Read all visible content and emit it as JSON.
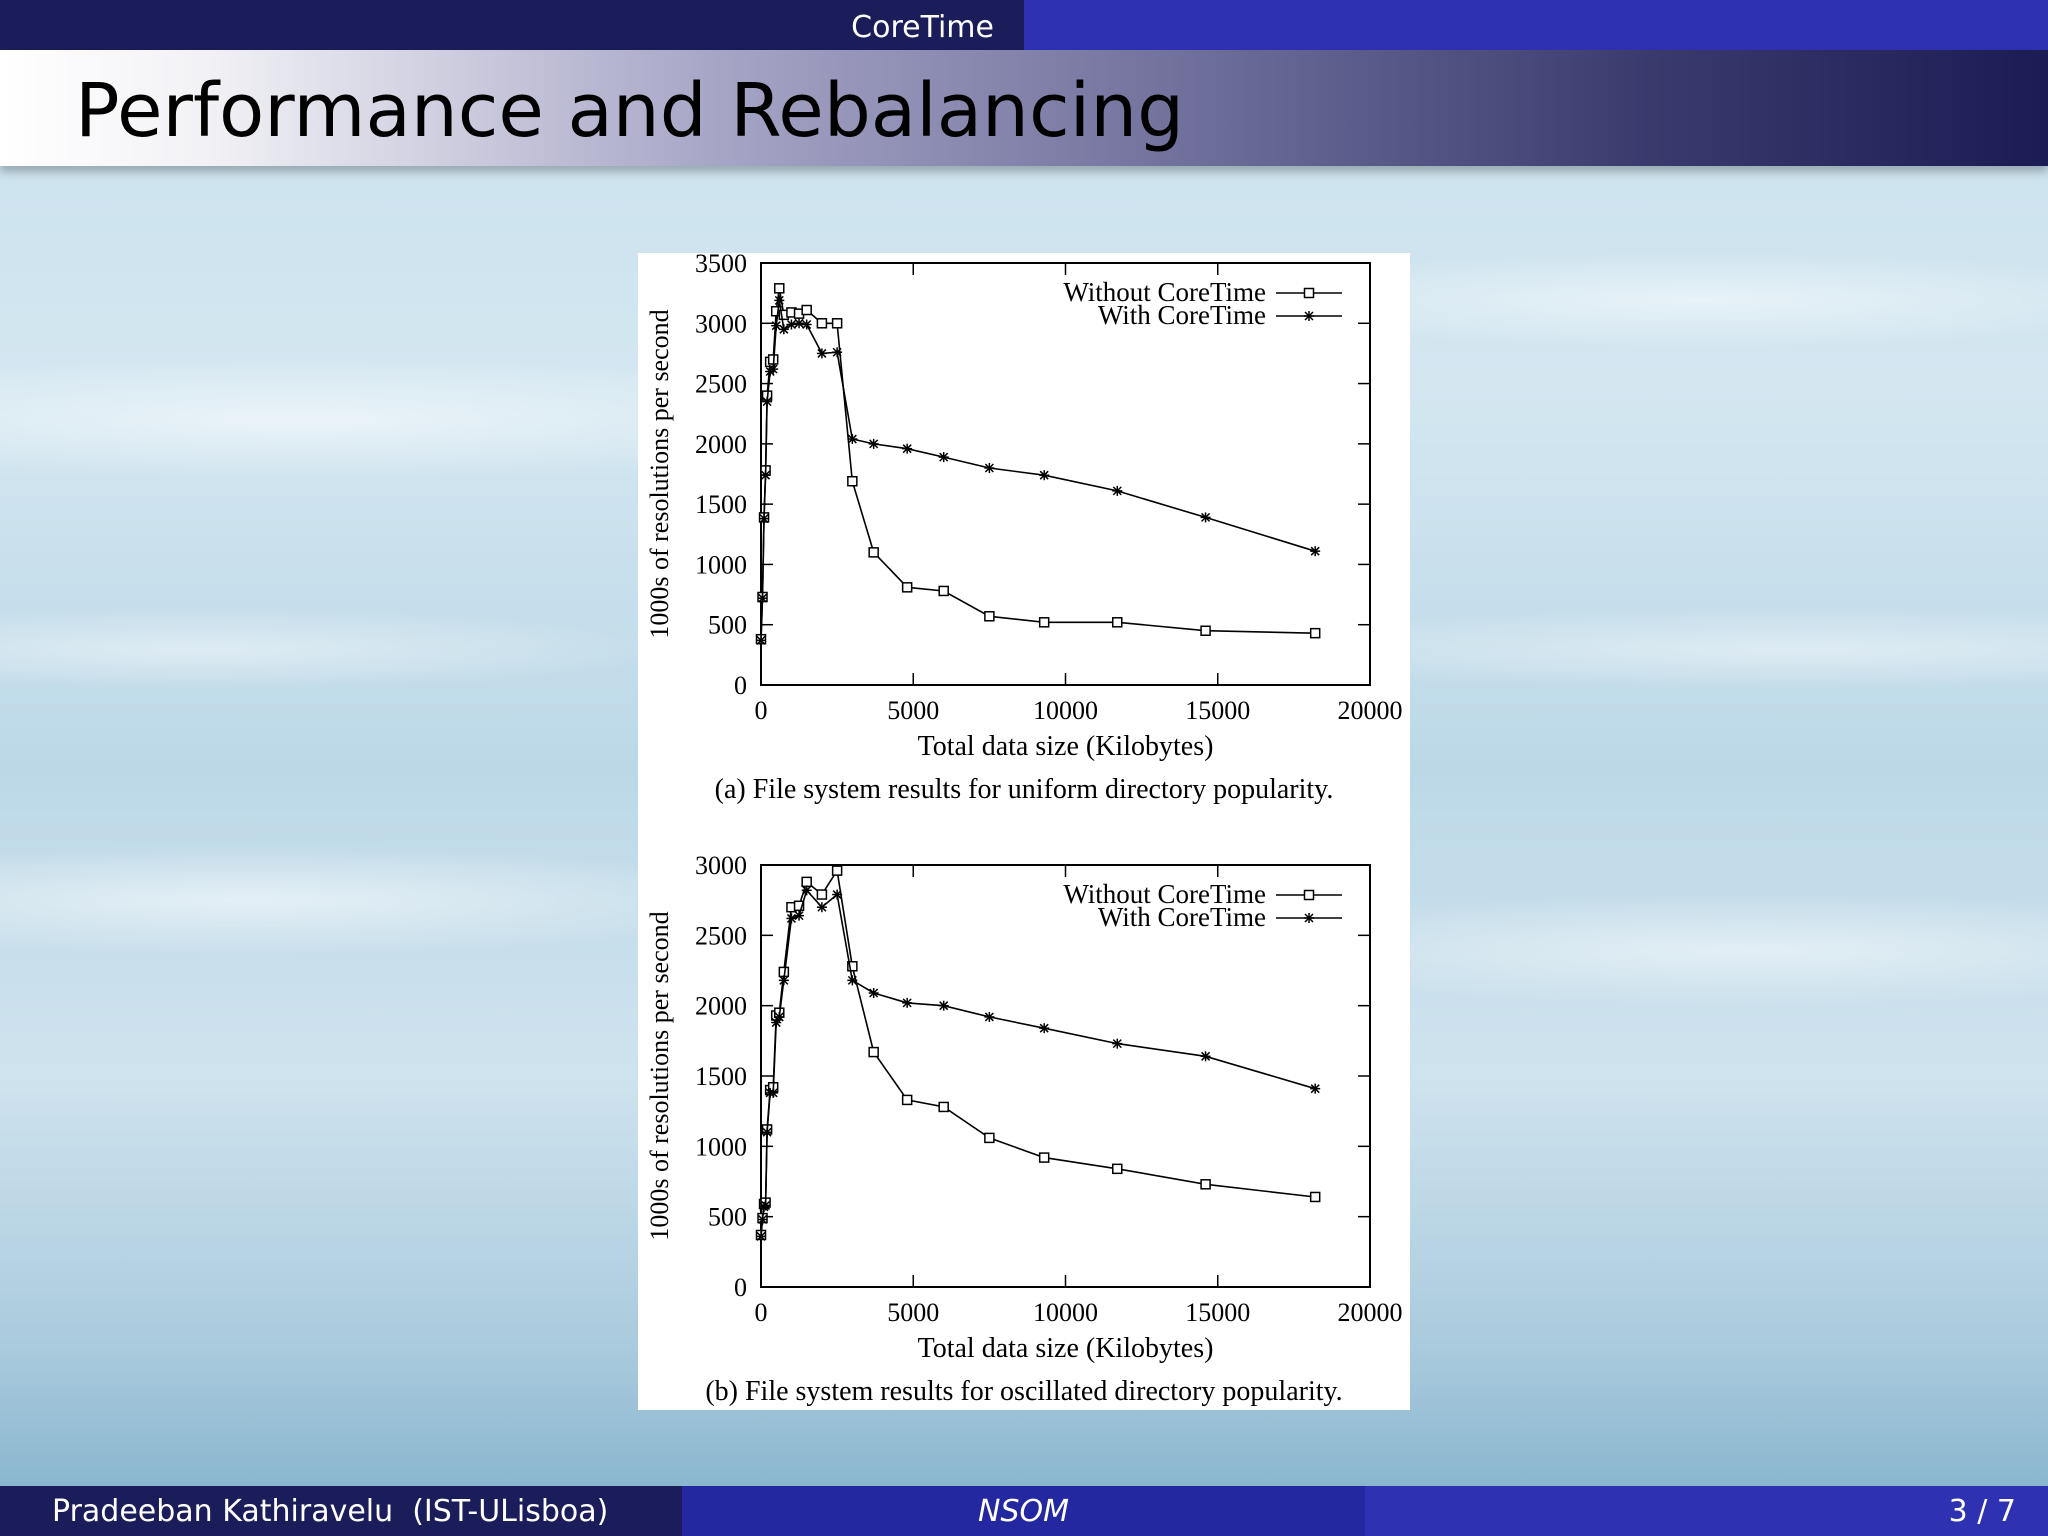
{
  "header": {
    "section": "CoreTime"
  },
  "frame": {
    "title": "Performance and Rebalancing"
  },
  "footer": {
    "author": "Pradeeban Kathiravelu  (IST-ULisboa)",
    "short_title": "NSOM",
    "page": "3 / 7"
  },
  "chart_data": [
    {
      "type": "line",
      "caption": "(a) File system results for uniform directory popularity.",
      "xlabel": "Total data size (Kilobytes)",
      "ylabel": "1000s of resolutions per second",
      "xlim": [
        0,
        20000
      ],
      "ylim": [
        0,
        3500
      ],
      "xticks": [
        0,
        5000,
        10000,
        15000,
        20000
      ],
      "yticks": [
        0,
        500,
        1000,
        1500,
        2000,
        2500,
        3000,
        3500
      ],
      "legend": "top-right",
      "series": [
        {
          "name": "Without CoreTime",
          "marker": "square",
          "x": [
            0,
            50,
            100,
            150,
            200,
            300,
            400,
            500,
            600,
            750,
            1000,
            1250,
            1500,
            2000,
            2500,
            3000,
            3700,
            4800,
            6000,
            7500,
            9300,
            11700,
            14600,
            18200
          ],
          "y": [
            380,
            730,
            1390,
            1780,
            2400,
            2680,
            2700,
            3100,
            3290,
            3070,
            3090,
            3080,
            3110,
            3000,
            3000,
            1690,
            1100,
            810,
            780,
            570,
            520,
            520,
            450,
            430
          ]
        },
        {
          "name": "With CoreTime",
          "marker": "asterisk",
          "x": [
            0,
            50,
            100,
            150,
            200,
            300,
            400,
            500,
            600,
            750,
            1000,
            1250,
            1500,
            2000,
            2500,
            3000,
            3700,
            4800,
            6000,
            7500,
            9300,
            11700,
            14600,
            18200
          ],
          "y": [
            370,
            720,
            1380,
            1740,
            2350,
            2600,
            2620,
            2980,
            3190,
            2950,
            2990,
            3000,
            2990,
            2750,
            2760,
            2040,
            2000,
            1960,
            1890,
            1800,
            1740,
            1610,
            1390,
            1110
          ]
        }
      ]
    },
    {
      "type": "line",
      "caption": "(b) File system results for oscillated directory popularity.",
      "xlabel": "Total data size (Kilobytes)",
      "ylabel": "1000s of resolutions per second",
      "xlim": [
        0,
        20000
      ],
      "ylim": [
        0,
        3000
      ],
      "xticks": [
        0,
        5000,
        10000,
        15000,
        20000
      ],
      "yticks": [
        0,
        500,
        1000,
        1500,
        2000,
        2500,
        3000
      ],
      "legend": "top-right",
      "series": [
        {
          "name": "Without CoreTime",
          "marker": "square",
          "x": [
            0,
            50,
            100,
            150,
            200,
            300,
            400,
            500,
            600,
            750,
            1000,
            1250,
            1500,
            2000,
            2500,
            3000,
            3700,
            4800,
            6000,
            7500,
            9300,
            11700,
            14600,
            18200
          ],
          "y": [
            370,
            490,
            590,
            600,
            1120,
            1400,
            1420,
            1930,
            1950,
            2240,
            2700,
            2710,
            2880,
            2790,
            2960,
            2280,
            1670,
            1330,
            1280,
            1060,
            920,
            840,
            730,
            640
          ]
        },
        {
          "name": "With CoreTime",
          "marker": "asterisk",
          "x": [
            0,
            50,
            100,
            150,
            200,
            300,
            400,
            500,
            600,
            750,
            1000,
            1250,
            1500,
            2000,
            2500,
            3000,
            3700,
            4800,
            6000,
            7500,
            9300,
            11700,
            14600,
            18200
          ],
          "y": [
            360,
            480,
            570,
            580,
            1100,
            1380,
            1380,
            1880,
            1920,
            2180,
            2620,
            2640,
            2820,
            2700,
            2790,
            2180,
            2090,
            2020,
            2000,
            1920,
            1840,
            1730,
            1640,
            1410
          ]
        }
      ]
    }
  ]
}
